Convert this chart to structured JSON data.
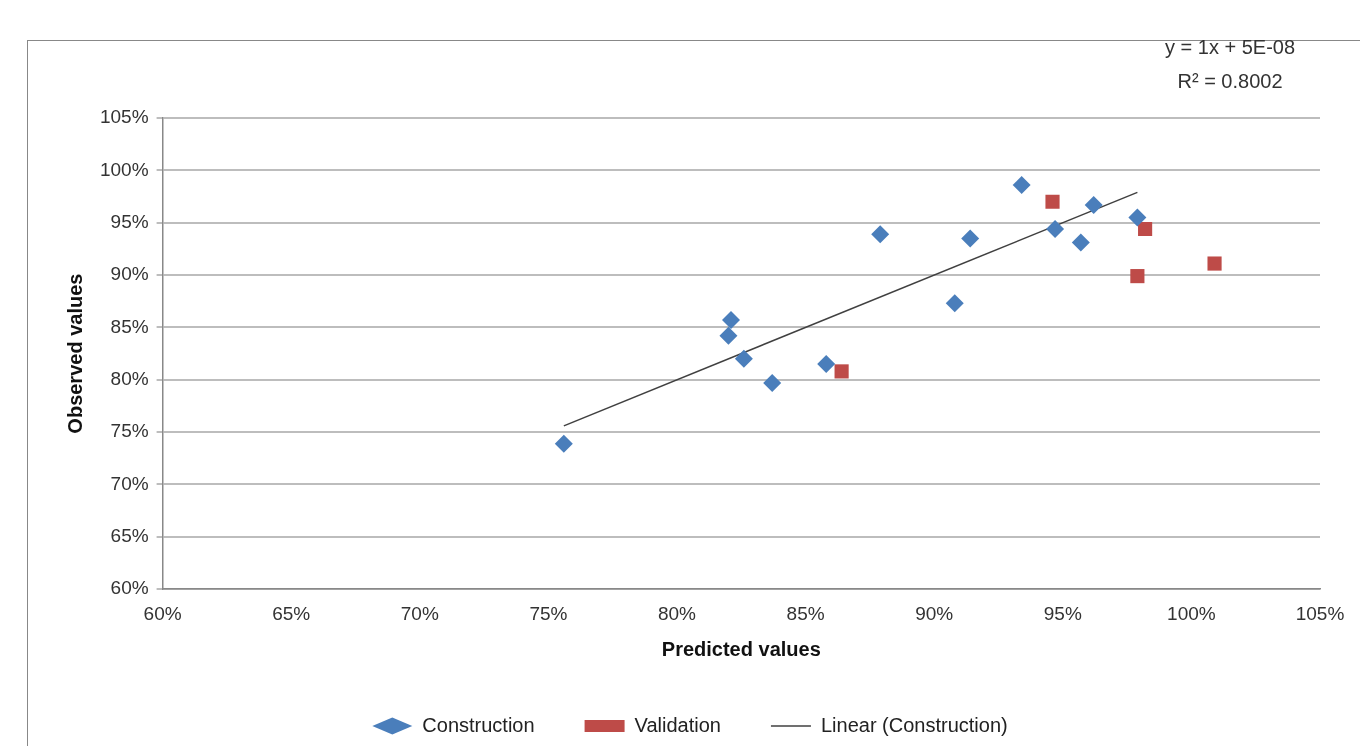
{
  "chart_data": {
    "type": "scatter",
    "xlabel": "Predicted values",
    "ylabel": "Observed values",
    "annotations": [
      "y = 1x + 5E-08",
      "R² = 0.8002"
    ],
    "xlim": [
      60,
      105
    ],
    "ylim": [
      60,
      105
    ],
    "xticks": [
      {
        "value": 60,
        "label": "60%"
      },
      {
        "value": 65,
        "label": "65%"
      },
      {
        "value": 70,
        "label": "70%"
      },
      {
        "value": 75,
        "label": "75%"
      },
      {
        "value": 80,
        "label": "80%"
      },
      {
        "value": 85,
        "label": "85%"
      },
      {
        "value": 90,
        "label": "90%"
      },
      {
        "value": 95,
        "label": "95%"
      },
      {
        "value": 100,
        "label": "100%"
      },
      {
        "value": 105,
        "label": "105%"
      }
    ],
    "yticks": [
      {
        "value": 60,
        "label": "60%"
      },
      {
        "value": 65,
        "label": "65%"
      },
      {
        "value": 70,
        "label": "70%"
      },
      {
        "value": 75,
        "label": "75%"
      },
      {
        "value": 80,
        "label": "80%"
      },
      {
        "value": 85,
        "label": "85%"
      },
      {
        "value": 90,
        "label": "90%"
      },
      {
        "value": 95,
        "label": "95%"
      },
      {
        "value": 100,
        "label": "100%"
      },
      {
        "value": 105,
        "label": "105%"
      }
    ],
    "grid": "y",
    "legend": "bottom",
    "series": [
      {
        "name": "Construction",
        "color": "#4a7ebb",
        "marker": "diamond",
        "x": [
          75.6,
          82.1,
          82.0,
          82.6,
          83.7,
          85.8,
          87.9,
          90.8,
          91.4,
          93.4,
          94.7,
          95.7,
          96.2,
          97.9
        ],
        "values": [
          73.9,
          85.7,
          84.2,
          82.0,
          79.7,
          81.5,
          93.9,
          87.3,
          93.5,
          98.6,
          94.4,
          93.1,
          96.7,
          95.5
        ]
      },
      {
        "name": "Validation",
        "color": "#be4b48",
        "marker": "square",
        "x": [
          86.4,
          94.6,
          98.2,
          97.9,
          100.9
        ],
        "values": [
          80.8,
          97.0,
          94.4,
          89.9,
          91.1
        ]
      },
      {
        "name": "Linear (Construction)",
        "type": "line",
        "color": "#404040",
        "marker": "none",
        "line_style": "solid",
        "x": [
          75.6,
          97.9
        ],
        "values": [
          75.6,
          97.9
        ]
      }
    ]
  }
}
